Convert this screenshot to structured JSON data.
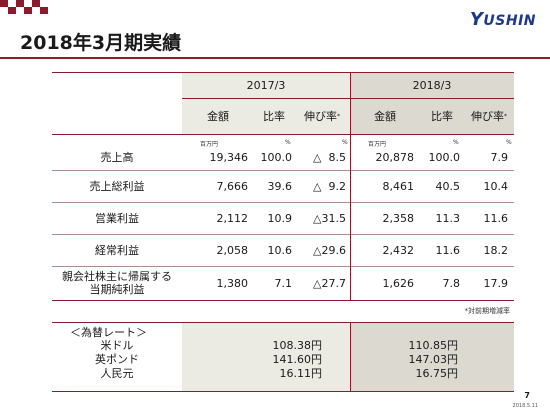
{
  "logo": {
    "initial": "Y",
    "rest": "USHIN"
  },
  "title": "2018年3月期実績",
  "periods": [
    "2017/3",
    "2018/3"
  ],
  "columns": {
    "amount": "金額",
    "ratio": "比率",
    "growth": "伸び率",
    "growth_mark": "*"
  },
  "units": {
    "amount": "百万円",
    "ratio": "%",
    "growth": "%"
  },
  "rows": [
    {
      "label": [
        "売上高"
      ],
      "p2017": [
        "19,346",
        "100.0",
        "△  8.5"
      ],
      "p2018": [
        "20,878",
        "100.0",
        "7.9"
      ]
    },
    {
      "label": [
        "売上総利益"
      ],
      "p2017": [
        "7,666",
        "39.6",
        "△  9.2"
      ],
      "p2018": [
        "8,461",
        "40.5",
        "10.4"
      ]
    },
    {
      "label": [
        "営業利益"
      ],
      "p2017": [
        "2,112",
        "10.9",
        "△31.5"
      ],
      "p2018": [
        "2,358",
        "11.3",
        "11.6"
      ]
    },
    {
      "label": [
        "経常利益"
      ],
      "p2017": [
        "2,058",
        "10.6",
        "△29.6"
      ],
      "p2018": [
        "2,432",
        "11.6",
        "18.2"
      ]
    },
    {
      "label": [
        "親会社株主に帰属する",
        "当期純利益"
      ],
      "p2017": [
        "1,380",
        "7.1",
        "△27.7"
      ],
      "p2018": [
        "1,626",
        "7.8",
        "17.9"
      ]
    }
  ],
  "footnote": "*対前期増減率",
  "fx": {
    "heading": "＜為替レート＞",
    "items": [
      {
        "name": "米ドル",
        "v2017": "108.38円",
        "v2018": "110.85円"
      },
      {
        "name": "英ポンド",
        "v2017": "141.60円",
        "v2018": "147.03円"
      },
      {
        "name": "人民元",
        "v2017": "16.11円",
        "v2018": "16.75円"
      }
    ]
  },
  "page_number": "7",
  "date": "2018.5.11",
  "colors": {
    "accent": "#8c1a2a",
    "logo": "#1d3a8a",
    "shade_light": "#ecebe3",
    "shade_dark": "#dcdad0"
  }
}
